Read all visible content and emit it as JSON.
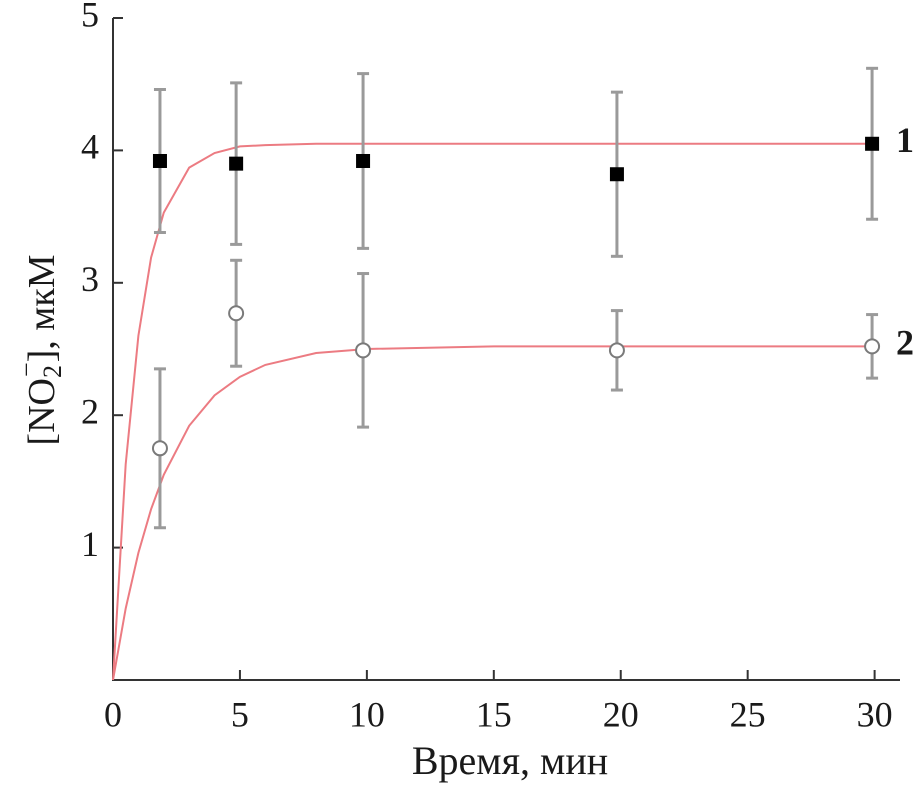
{
  "chart_data": {
    "type": "scatter",
    "x_label": "Время, мин",
    "y_label": {
      "prefix": "[NO",
      "sub": "2",
      "sup": "−",
      "suffix": "], мкМ"
    },
    "xlim": [
      0,
      31
    ],
    "xticks": [
      0,
      5,
      10,
      15,
      20,
      25,
      30
    ],
    "ylim": [
      0,
      5
    ],
    "yticks": [
      1,
      2,
      3,
      4,
      5
    ],
    "fit_color": "#ec7b82",
    "error_color": "#9a9a9a",
    "series": [
      {
        "name": "1",
        "marker": "square",
        "color": "#000000",
        "x": [
          1.85,
          4.85,
          9.85,
          19.85,
          29.9
        ],
        "values": [
          3.92,
          3.9,
          3.92,
          3.82,
          4.05
        ],
        "errors": [
          0.54,
          0.61,
          0.66,
          0.62,
          0.57
        ],
        "fit": {
          "x": [
            0,
            0.5,
            1,
            1.5,
            2,
            3,
            4,
            5,
            6,
            8,
            10,
            15,
            20,
            30
          ],
          "values": [
            0,
            1.63,
            2.6,
            3.19,
            3.53,
            3.87,
            3.98,
            4.03,
            4.04,
            4.05,
            4.05,
            4.05,
            4.05,
            4.05
          ]
        }
      },
      {
        "name": "2",
        "marker": "circle",
        "color": "#7a7a7a",
        "x": [
          1.85,
          4.85,
          9.85,
          19.85,
          29.9
        ],
        "values": [
          1.75,
          2.77,
          2.49,
          2.49,
          2.52
        ],
        "errors": [
          0.6,
          0.4,
          0.58,
          0.3,
          0.24
        ],
        "fit": {
          "x": [
            0,
            0.5,
            1,
            1.5,
            2,
            3,
            4,
            5,
            6,
            8,
            10,
            15,
            20,
            30
          ],
          "values": [
            0,
            0.54,
            0.96,
            1.29,
            1.55,
            1.92,
            2.15,
            2.29,
            2.38,
            2.47,
            2.5,
            2.52,
            2.52,
            2.52
          ]
        }
      }
    ]
  }
}
